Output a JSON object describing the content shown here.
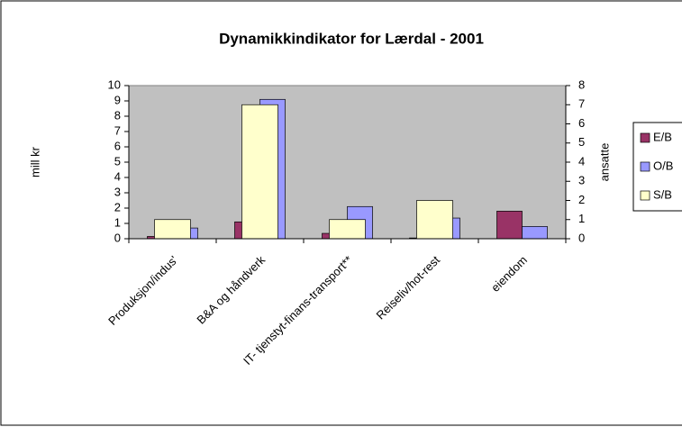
{
  "chart_data": {
    "type": "bar",
    "title": "Dynamikkindikator for Lærdal - 2001",
    "y_label": "mill kr",
    "y2_label": "ansatte",
    "categories": [
      "Produksjon/indus'",
      "B&A og håndverk",
      "IT- tjenstyt-finans-transport**",
      "Reiseliv/hot-rest",
      "eiendom"
    ],
    "series": [
      {
        "name": "E/B",
        "color": "#993366",
        "values": [
          0.15,
          1.1,
          0.35,
          0.05,
          1.8
        ]
      },
      {
        "name": "O/B",
        "color": "#9999ff",
        "values": [
          0.7,
          9.1,
          2.1,
          1.35,
          0.8
        ]
      },
      {
        "name": "S/B",
        "color": "#ffffcc",
        "axis": "y2",
        "values": [
          1,
          7,
          1,
          2,
          0
        ]
      }
    ],
    "ylim": [
      0,
      10
    ],
    "yticks": [
      0,
      1,
      2,
      3,
      4,
      5,
      6,
      7,
      8,
      9,
      10
    ],
    "y2lim": [
      0,
      8
    ],
    "y2ticks": [
      0,
      1,
      2,
      3,
      4,
      5,
      6,
      7,
      8
    ],
    "plot_background": "#c0c0c0",
    "legend": "right"
  }
}
